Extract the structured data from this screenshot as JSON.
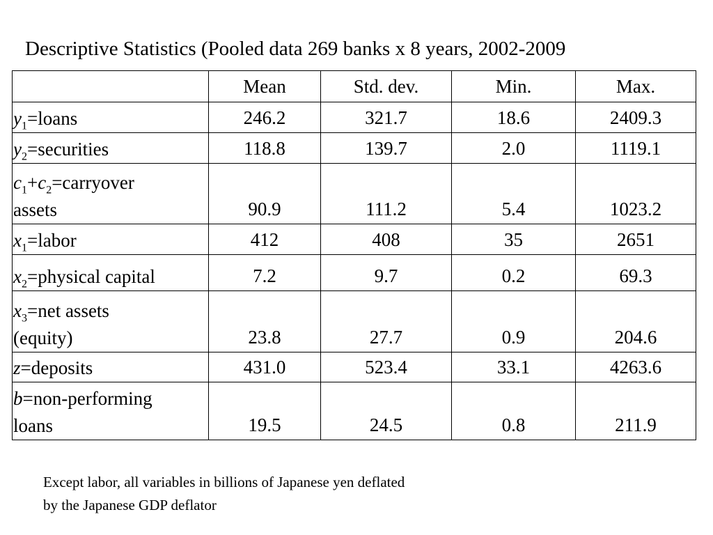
{
  "title": "Descriptive Statistics (Pooled data 269 banks x 8 years, 2002-2009",
  "table": {
    "columns": [
      "",
      "Mean",
      "Std. dev.",
      "Min.",
      "Max."
    ],
    "rows": [
      {
        "sym": "y",
        "sub": "1",
        "rest": "=loans",
        "line1": "",
        "line2": "",
        "values": [
          "246.2",
          "321.7",
          "18.6",
          "2409.3"
        ]
      },
      {
        "sym": "y",
        "sub": "2",
        "rest": "=securities",
        "values": [
          "118.8",
          "139.7",
          "2.0",
          "1119.1"
        ]
      },
      {
        "sym": "c",
        "sub": "1",
        "mid": "+",
        "sym2": "c",
        "sub2": "2",
        "rest": "=carryover",
        "line2": "assets",
        "values": [
          "90.9",
          "111.2",
          "5.4",
          "1023.2"
        ]
      },
      {
        "sym": "x",
        "sub": "1",
        "rest": "=labor",
        "values": [
          "412",
          "408",
          "35",
          "2651"
        ]
      },
      {
        "sym": "x",
        "sub": "2",
        "rest": "=physical capital",
        "values": [
          "7.2",
          "9.7",
          "0.2",
          "69.3"
        ]
      },
      {
        "sym": "x",
        "sub": "3",
        "rest": "=net assets",
        "line2": "(equity)",
        "values": [
          "23.8",
          "27.7",
          "0.9",
          "204.6"
        ]
      },
      {
        "sym": "z",
        "rest": "=deposits",
        "values": [
          "431.0",
          "523.4",
          "33.1",
          "4263.6"
        ]
      },
      {
        "sym": "b",
        "rest": "=non-performing",
        "line2": "loans",
        "values": [
          "19.5",
          "24.5",
          "0.8",
          "211.9"
        ]
      }
    ]
  },
  "note": {
    "line1": "Except labor, all variables in billions of Japanese yen deflated",
    "line2": "by the Japanese GDP deflator"
  }
}
